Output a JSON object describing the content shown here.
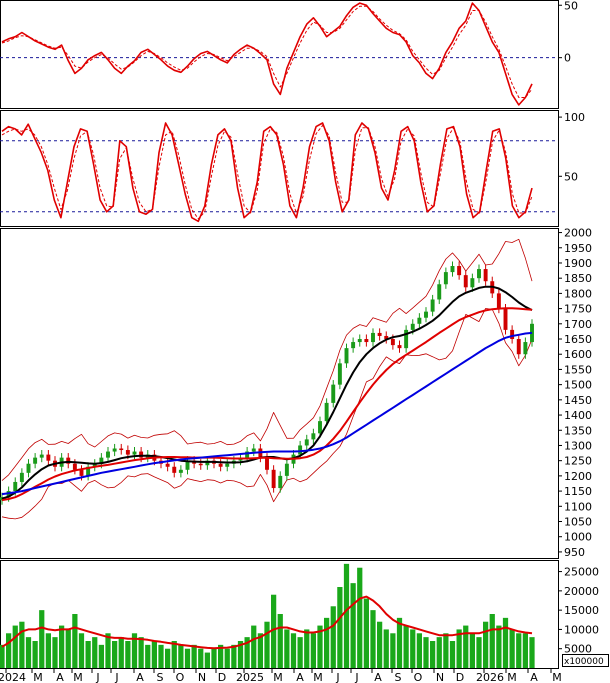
{
  "chart_data": [
    {
      "type": "line",
      "panel": "oscillator",
      "yticks": [
        50,
        0
      ],
      "reference_lines": [
        0
      ],
      "series": [
        {
          "color": "#e00000",
          "values": [
            15,
            18,
            20,
            24,
            20,
            16,
            13,
            10,
            8,
            12,
            -3,
            -15,
            -10,
            -2,
            2,
            5,
            -2,
            -10,
            -15,
            -8,
            -3,
            5,
            8,
            3,
            -2,
            -8,
            -12,
            -14,
            -8,
            -1,
            4,
            6,
            2,
            -2,
            -5,
            3,
            8,
            12,
            9,
            4,
            -2,
            -25,
            -35,
            -10,
            5,
            20,
            32,
            38,
            30,
            20,
            25,
            30,
            40,
            48,
            52,
            50,
            42,
            35,
            28,
            24,
            22,
            15,
            2,
            -5,
            -15,
            -20,
            -10,
            5,
            15,
            28,
            35,
            52,
            45,
            30,
            15,
            5,
            -15,
            -35,
            -45,
            -38,
            -25
          ]
        },
        {
          "color": "#e00000",
          "dashed": true,
          "values": [
            14,
            16,
            19,
            21,
            20,
            17,
            14,
            11,
            9,
            10,
            2,
            -8,
            -10,
            -4,
            0,
            3,
            0,
            -6,
            -11,
            -9,
            -4,
            2,
            6,
            4,
            0,
            -5,
            -9,
            -12,
            -10,
            -4,
            1,
            4,
            3,
            0,
            -3,
            1,
            5,
            9,
            9,
            6,
            1,
            -15,
            -28,
            -15,
            0,
            14,
            26,
            34,
            31,
            24,
            24,
            28,
            36,
            44,
            49,
            49,
            44,
            37,
            31,
            26,
            23,
            17,
            6,
            -2,
            -10,
            -16,
            -12,
            0,
            10,
            22,
            31,
            45,
            45,
            34,
            20,
            8,
            -8,
            -25,
            -38,
            -38,
            -30
          ]
        }
      ]
    },
    {
      "type": "line",
      "panel": "stochastic",
      "yticks": [
        100,
        50
      ],
      "reference_lines": [
        80,
        20
      ],
      "series": [
        {
          "color": "#e00000",
          "values": [
            88,
            92,
            90,
            85,
            94,
            82,
            70,
            55,
            30,
            15,
            45,
            75,
            90,
            88,
            60,
            30,
            20,
            25,
            80,
            75,
            40,
            20,
            18,
            22,
            70,
            95,
            85,
            60,
            35,
            15,
            12,
            25,
            60,
            85,
            90,
            80,
            40,
            15,
            20,
            45,
            88,
            92,
            85,
            60,
            25,
            15,
            40,
            75,
            92,
            95,
            80,
            45,
            20,
            30,
            85,
            95,
            90,
            70,
            40,
            30,
            55,
            88,
            92,
            80,
            45,
            20,
            25,
            60,
            90,
            92,
            75,
            35,
            15,
            20,
            55,
            88,
            90,
            65,
            25,
            15,
            20,
            40
          ]
        },
        {
          "color": "#e00000",
          "dashed": true,
          "values": [
            85,
            88,
            90,
            88,
            90,
            85,
            75,
            60,
            40,
            22,
            38,
            65,
            84,
            88,
            68,
            40,
            25,
            24,
            65,
            74,
            48,
            28,
            20,
            22,
            58,
            85,
            88,
            68,
            43,
            22,
            14,
            20,
            50,
            76,
            88,
            83,
            52,
            25,
            19,
            38,
            78,
            90,
            87,
            67,
            35,
            19,
            33,
            64,
            86,
            93,
            84,
            53,
            28,
            28,
            72,
            91,
            91,
            75,
            48,
            33,
            48,
            80,
            90,
            84,
            53,
            28,
            24,
            52,
            82,
            91,
            79,
            45,
            22,
            19,
            47,
            80,
            89,
            70,
            35,
            19,
            19,
            33
          ]
        }
      ]
    },
    {
      "type": "candlestick",
      "panel": "price",
      "yticks": [
        2000,
        1950,
        1900,
        1850,
        1800,
        1750,
        1700,
        1650,
        1600,
        1550,
        1500,
        1450,
        1400,
        1350,
        1300,
        1250,
        1200,
        1150,
        1100,
        1050,
        1000,
        950
      ],
      "ylim": [
        930,
        2015
      ],
      "x_labels": [
        "2024",
        "M",
        "A",
        "M",
        "J",
        "J",
        "A",
        "S",
        "O",
        "N",
        "D",
        "2025",
        "M",
        "A",
        "M",
        "J",
        "J",
        "A",
        "S",
        "O",
        "N",
        "D",
        "2026",
        "M",
        "A",
        "M"
      ],
      "close": [
        1130,
        1150,
        1180,
        1210,
        1240,
        1260,
        1270,
        1250,
        1230,
        1260,
        1240,
        1220,
        1200,
        1230,
        1240,
        1260,
        1280,
        1290,
        1285,
        1270,
        1280,
        1260,
        1270,
        1250,
        1240,
        1230,
        1210,
        1220,
        1250,
        1240,
        1235,
        1250,
        1240,
        1230,
        1240,
        1250,
        1260,
        1280,
        1290,
        1260,
        1220,
        1160,
        1200,
        1240,
        1270,
        1300,
        1320,
        1340,
        1380,
        1440,
        1500,
        1570,
        1620,
        1640,
        1650,
        1640,
        1670,
        1660,
        1650,
        1630,
        1620,
        1680,
        1700,
        1720,
        1740,
        1780,
        1830,
        1870,
        1890,
        1860,
        1820,
        1850,
        1880,
        1840,
        1800,
        1750,
        1680,
        1650,
        1600,
        1640,
        1700
      ],
      "series": [
        {
          "name": "",
          "color": "#000000",
          "values": [
            1125,
            1132,
            1145,
            1162,
            1185,
            1205,
            1222,
            1234,
            1240,
            1244,
            1246,
            1245,
            1243,
            1241,
            1240,
            1242,
            1246,
            1252,
            1258,
            1262,
            1265,
            1266,
            1266,
            1265,
            1262,
            1258,
            1254,
            1250,
            1248,
            1247,
            1246,
            1246,
            1246,
            1245,
            1244,
            1244,
            1245,
            1248,
            1254,
            1260,
            1262,
            1262,
            1258,
            1255,
            1258,
            1266,
            1280,
            1300,
            1330,
            1368,
            1410,
            1455,
            1500,
            1540,
            1574,
            1600,
            1620,
            1636,
            1648,
            1656,
            1660,
            1666,
            1674,
            1684,
            1696,
            1710,
            1728,
            1750,
            1772,
            1790,
            1802,
            1810,
            1818,
            1822,
            1822,
            1816,
            1804,
            1788,
            1770,
            1756,
            1745
          ]
        },
        {
          "name": "",
          "color": "#e00000",
          "values": [
            1120,
            1124,
            1130,
            1140,
            1152,
            1164,
            1176,
            1188,
            1198,
            1206,
            1212,
            1218,
            1222,
            1226,
            1230,
            1233,
            1236,
            1240,
            1244,
            1248,
            1252,
            1255,
            1258,
            1260,
            1261,
            1262,
            1262,
            1261,
            1261,
            1260,
            1260,
            1260,
            1260,
            1259,
            1258,
            1257,
            1257,
            1257,
            1258,
            1259,
            1260,
            1258,
            1257,
            1256,
            1256,
            1258,
            1262,
            1270,
            1282,
            1300,
            1322,
            1348,
            1378,
            1410,
            1442,
            1472,
            1500,
            1525,
            1548,
            1568,
            1584,
            1598,
            1612,
            1626,
            1640,
            1655,
            1670,
            1684,
            1698,
            1712,
            1722,
            1730,
            1738,
            1744,
            1748,
            1750,
            1751,
            1751,
            1750,
            1748,
            1746
          ]
        },
        {
          "name": "",
          "color": "#0000e0",
          "values": [
            1140,
            1143,
            1146,
            1150,
            1155,
            1160,
            1165,
            1170,
            1175,
            1180,
            1185,
            1190,
            1195,
            1200,
            1205,
            1210,
            1214,
            1218,
            1222,
            1226,
            1230,
            1234,
            1238,
            1242,
            1245,
            1248,
            1251,
            1254,
            1256,
            1258,
            1260,
            1262,
            1264,
            1266,
            1268,
            1270,
            1272,
            1274,
            1276,
            1278,
            1279,
            1280,
            1280,
            1280,
            1280,
            1281,
            1283,
            1286,
            1290,
            1296,
            1304,
            1314,
            1326,
            1340,
            1354,
            1368,
            1382,
            1396,
            1410,
            1424,
            1438,
            1452,
            1466,
            1480,
            1494,
            1508,
            1522,
            1536,
            1550,
            1564,
            1578,
            1592,
            1606,
            1620,
            1632,
            1644,
            1654,
            1660,
            1664,
            1668,
            1670
          ]
        }
      ]
    },
    {
      "type": "bar",
      "panel": "volume",
      "yticks": [
        25000,
        20000,
        15000,
        10000,
        5000
      ],
      "ylim": [
        0,
        28000
      ],
      "unit_label": "x100000",
      "values": [
        6000,
        9000,
        11000,
        12000,
        8000,
        7000,
        15000,
        9000,
        8000,
        11000,
        10000,
        14000,
        9000,
        7000,
        8000,
        6000,
        9000,
        7000,
        8000,
        7000,
        9000,
        8000,
        6000,
        7000,
        6000,
        5000,
        7000,
        6000,
        5000,
        6000,
        5000,
        4000,
        5000,
        6000,
        5000,
        6000,
        7000,
        8000,
        11000,
        9000,
        12000,
        19000,
        14000,
        10000,
        9000,
        8000,
        10000,
        9000,
        11000,
        13000,
        16000,
        21000,
        27000,
        22000,
        26000,
        18000,
        15000,
        12000,
        10000,
        9000,
        13000,
        11000,
        10000,
        9000,
        8000,
        7000,
        8000,
        9000,
        7000,
        10000,
        11000,
        9000,
        8000,
        12000,
        14000,
        11000,
        13000,
        10000,
        9000,
        9000,
        8000
      ],
      "series": [
        {
          "name": "",
          "color": "#e00000",
          "values": [
            5500,
            6500,
            8000,
            9500,
            10000,
            10000,
            10500,
            10000,
            9800,
            10000,
            10000,
            10500,
            10000,
            9500,
            9000,
            8500,
            8000,
            7800,
            7800,
            7600,
            7600,
            7500,
            7300,
            7000,
            6800,
            6500,
            6300,
            6000,
            5800,
            5600,
            5400,
            5200,
            5100,
            5200,
            5300,
            5500,
            6000,
            6500,
            7500,
            8000,
            9000,
            10000,
            10500,
            10500,
            10000,
            9500,
            9200,
            9200,
            9500,
            10000,
            11000,
            13000,
            15000,
            16500,
            18000,
            18500,
            17500,
            16000,
            14000,
            12500,
            11500,
            11000,
            10500,
            10000,
            9500,
            9000,
            8500,
            8500,
            8500,
            8800,
            9000,
            9000,
            9000,
            9500,
            10000,
            10000,
            10500,
            10000,
            9500,
            9200,
            9000
          ]
        }
      ]
    }
  ]
}
